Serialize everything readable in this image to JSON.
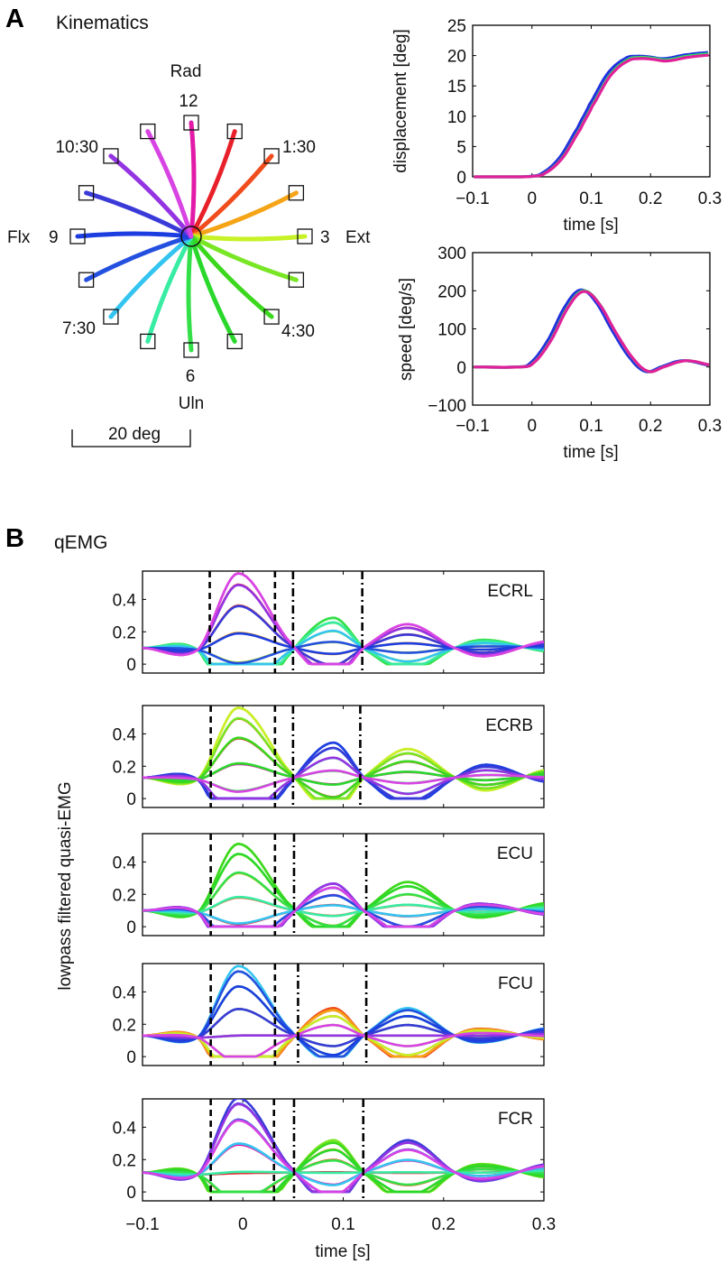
{
  "panel_a": {
    "letter": "A",
    "title": "Kinematics"
  },
  "panel_b": {
    "letter": "B",
    "title": "qEMG"
  },
  "directions": {
    "labels": {
      "rad": "Rad",
      "uln": "Uln",
      "flx": "Flx",
      "ext": "Ext",
      "c12": "12",
      "c130": "1:30",
      "c3": "3",
      "c430": "4:30",
      "c6": "6",
      "c730": "7:30",
      "c9": "9",
      "c1030": "10:30"
    },
    "scale_bar": "20 deg",
    "colors": [
      "#e21aa8",
      "#e8202a",
      "#f04c1c",
      "#f5a416",
      "#c6f226",
      "#78e624",
      "#3cd81e",
      "#2ad82c",
      "#34e04a",
      "#38eca4",
      "#34c4f0",
      "#2450e0",
      "#1c3ee0",
      "#3a3ad8",
      "#9434e2",
      "#d844e4"
    ],
    "target_amplitude_deg": 20
  },
  "chart_data": [
    {
      "type": "line",
      "name": "displacement",
      "xlabel": "time [s]",
      "ylabel": "displacement [deg]",
      "xlim": [
        -0.1,
        0.3
      ],
      "ylim": [
        0,
        25
      ],
      "xticks": [
        "-0.1",
        "0",
        "0.1",
        "0.2",
        "0.3"
      ],
      "yticks": [
        "0",
        "5",
        "10",
        "15",
        "20",
        "25"
      ],
      "x": [
        -0.1,
        -0.02,
        0,
        0.02,
        0.05,
        0.08,
        0.1,
        0.13,
        0.16,
        0.18,
        0.2,
        0.225,
        0.26,
        0.3
      ],
      "y": [
        0,
        0,
        0.1,
        0.6,
        3.2,
        8,
        11.8,
        16.8,
        19.3,
        19.7,
        19.6,
        19.3,
        19.9,
        20.3
      ],
      "series_colors": [
        "#2030e0",
        "#30e060",
        "#e0209a"
      ]
    },
    {
      "type": "line",
      "name": "speed",
      "xlabel": "time [s]",
      "ylabel": "speed [deg/s]",
      "xlim": [
        -0.1,
        0.3
      ],
      "ylim": [
        -100,
        300
      ],
      "xticks": [
        "-0.1",
        "0",
        "0.1",
        "0.2",
        "0.3"
      ],
      "yticks": [
        "-100",
        "0",
        "100",
        "200",
        "300"
      ],
      "x": [
        -0.1,
        -0.02,
        0,
        0.03,
        0.06,
        0.085,
        0.11,
        0.14,
        0.17,
        0.195,
        0.22,
        0.25,
        0.27,
        0.3
      ],
      "y": [
        0,
        0,
        10,
        70,
        160,
        200,
        170,
        90,
        20,
        -12,
        0,
        15,
        15,
        5
      ],
      "series_colors": [
        "#2030e0",
        "#30e060",
        "#e0209a"
      ]
    },
    {
      "type": "line",
      "name": "qEMG",
      "xlabel": "time [s]",
      "ylabel": "lowpass filtered quasi-EMG",
      "xlim": [
        -0.1,
        0.3
      ],
      "ylim": [
        -0.055,
        0.575
      ],
      "xticks": [
        "-0.1",
        "0",
        "0.1",
        "0.2",
        "0.3"
      ],
      "yticks": [
        "0",
        "0.2",
        "0.4"
      ],
      "knot_times": [
        -0.1,
        -0.045,
        -0.005,
        0.048,
        0.09,
        0.122,
        0.165,
        0.215,
        0.245,
        0.3
      ],
      "phase_times": [
        -0.005,
        0.09,
        0.165,
        0.245
      ],
      "muscles": [
        {
          "name": "ECRL",
          "baseline": 0.1,
          "preferred_direction_deg": 349,
          "phase_amplitudes": [
            0.47,
            -0.19,
            0.15,
            -0.05
          ],
          "dashed": [
            -0.033,
            0.032
          ],
          "dashdot": [
            0.05,
            0.119
          ]
        },
        {
          "name": "ECRB",
          "baseline": 0.13,
          "preferred_direction_deg": 79,
          "phase_amplitudes": [
            0.44,
            -0.22,
            0.18,
            -0.08
          ],
          "dashed": [
            -0.032,
            0.032
          ],
          "dashdot": [
            0.05,
            0.117
          ]
        },
        {
          "name": "ECU",
          "baseline": 0.1,
          "preferred_direction_deg": 124,
          "phase_amplitudes": [
            0.42,
            -0.17,
            0.18,
            -0.04
          ],
          "dashed": [
            -0.032,
            0.032
          ],
          "dashdot": [
            0.051,
            0.123
          ]
        },
        {
          "name": "FCU",
          "baseline": 0.13,
          "preferred_direction_deg": 225,
          "phase_amplitudes": [
            0.43,
            -0.17,
            0.17,
            -0.04
          ],
          "dashed": [
            -0.032,
            0.032
          ],
          "dashdot": [
            0.055,
            0.123
          ]
        },
        {
          "name": "FCR",
          "baseline": 0.12,
          "preferred_direction_deg": 292,
          "phase_amplitudes": [
            0.46,
            -0.2,
            0.2,
            -0.05
          ],
          "dashed": [
            -0.032,
            0.031
          ],
          "dashdot": [
            0.051,
            0.12
          ]
        }
      ]
    }
  ]
}
